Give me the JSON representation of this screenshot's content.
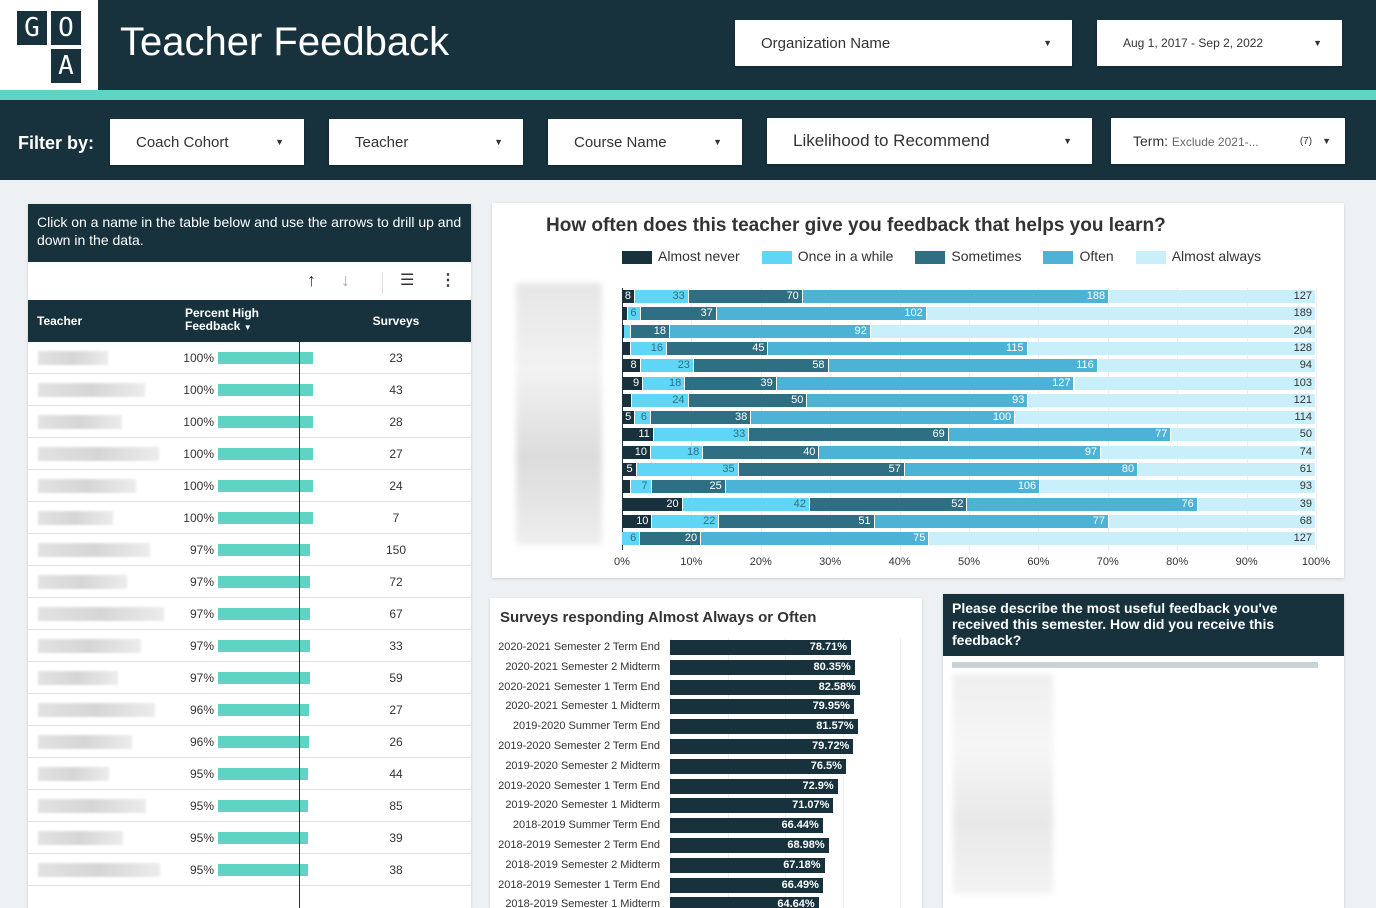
{
  "header": {
    "logo_letters": [
      "G",
      "O",
      "A"
    ],
    "title": "Teacher Feedback",
    "org_dropdown": "Organization Name",
    "date_range": "Aug 1, 2017 - Sep 2, 2022"
  },
  "filters": {
    "label": "Filter by:",
    "items": [
      "Coach Cohort",
      "Teacher",
      "Course Name",
      "Likelihood to Recommend"
    ],
    "term_label": "Term:",
    "term_value": "Exclude 2021-...",
    "term_count": "(7)"
  },
  "table": {
    "instructions": "Click on a name in the table below and use the arrows to drill up and down in the data.",
    "columns": [
      "Teacher",
      "Percent High Feedback",
      "Surveys"
    ],
    "rows": [
      {
        "pct": "100%",
        "value": 100,
        "surveys": "23"
      },
      {
        "pct": "100%",
        "value": 100,
        "surveys": "43"
      },
      {
        "pct": "100%",
        "value": 100,
        "surveys": "28"
      },
      {
        "pct": "100%",
        "value": 100,
        "surveys": "27"
      },
      {
        "pct": "100%",
        "value": 100,
        "surveys": "24"
      },
      {
        "pct": "100%",
        "value": 100,
        "surveys": "7"
      },
      {
        "pct": "97%",
        "value": 97,
        "surveys": "150"
      },
      {
        "pct": "97%",
        "value": 97,
        "surveys": "72"
      },
      {
        "pct": "97%",
        "value": 97,
        "surveys": "67"
      },
      {
        "pct": "97%",
        "value": 97,
        "surveys": "33"
      },
      {
        "pct": "97%",
        "value": 97,
        "surveys": "59"
      },
      {
        "pct": "96%",
        "value": 96,
        "surveys": "27"
      },
      {
        "pct": "96%",
        "value": 96,
        "surveys": "26"
      },
      {
        "pct": "95%",
        "value": 95,
        "surveys": "44"
      },
      {
        "pct": "95%",
        "value": 95,
        "surveys": "85"
      },
      {
        "pct": "95%",
        "value": 95,
        "surveys": "39"
      },
      {
        "pct": "95%",
        "value": 95,
        "surveys": "38"
      }
    ]
  },
  "chart_data": [
    {
      "type": "bar",
      "stacked": true,
      "orientation": "horizontal",
      "percent": true,
      "title": "How often does this teacher give you feedback that helps you learn?",
      "legend": [
        "Almost never",
        "Once in a while",
        "Sometimes",
        "Often",
        "Almost always"
      ],
      "colors": [
        "#17323d",
        "#5fd6f5",
        "#2f6f84",
        "#4db3d6",
        "#c9f0fa"
      ],
      "xticks": [
        "0%",
        "10%",
        "20%",
        "30%",
        "40%",
        "50%",
        "60%",
        "70%",
        "80%",
        "90%",
        "100%"
      ],
      "rows": [
        [
          8,
          33,
          70,
          188,
          127
        ],
        [
          3,
          6,
          37,
          102,
          189
        ],
        [
          1,
          3,
          18,
          92,
          204
        ],
        [
          4,
          16,
          45,
          115,
          128
        ],
        [
          8,
          23,
          58,
          116,
          94
        ],
        [
          9,
          18,
          39,
          127,
          103
        ],
        [
          4,
          24,
          50,
          93,
          121
        ],
        [
          5,
          6,
          38,
          100,
          114
        ],
        [
          11,
          33,
          69,
          77,
          50
        ],
        [
          10,
          18,
          40,
          97,
          74
        ],
        [
          5,
          35,
          57,
          80,
          61
        ],
        [
          3,
          7,
          25,
          106,
          93
        ],
        [
          20,
          42,
          52,
          76,
          39
        ],
        [
          10,
          22,
          51,
          77,
          68
        ],
        [
          0,
          6,
          20,
          75,
          127
        ]
      ]
    },
    {
      "type": "bar",
      "orientation": "horizontal",
      "title": "Surveys responding Almost Always or Often",
      "categories": [
        "2020-2021 Semester 2 Term End",
        "2020-2021 Semester 2 Midterm",
        "2020-2021 Semester 1 Term End",
        "2020-2021 Semester 1 Midterm",
        "2019-2020 Summer Term End",
        "2019-2020 Semester 2 Term End",
        "2019-2020 Semester 2 Midterm",
        "2019-2020 Semester 1 Term End",
        "2019-2020 Semester 1 Midterm",
        "2018-2019 Summer Term End",
        "2018-2019 Semester 2 Term End",
        "2018-2019 Semester 2 Midterm",
        "2018-2019 Semester 1 Term End",
        "2018-2019 Semester 1 Midterm"
      ],
      "values": [
        78.71,
        80.35,
        82.58,
        79.95,
        81.57,
        79.72,
        76.5,
        72.9,
        71.07,
        66.44,
        68.98,
        67.18,
        66.49,
        64.64
      ],
      "labels": [
        "78.71%",
        "80.35%",
        "82.58%",
        "79.95%",
        "81.57%",
        "79.72%",
        "76.5%",
        "72.9%",
        "71.07%",
        "66.44%",
        "68.98%",
        "67.18%",
        "66.49%",
        "64.64%"
      ],
      "xlim": [
        0,
        100
      ]
    }
  ],
  "feedback_panel": {
    "title": "Please describe the most useful feedback you've received this semester. How did you receive this feedback?"
  }
}
